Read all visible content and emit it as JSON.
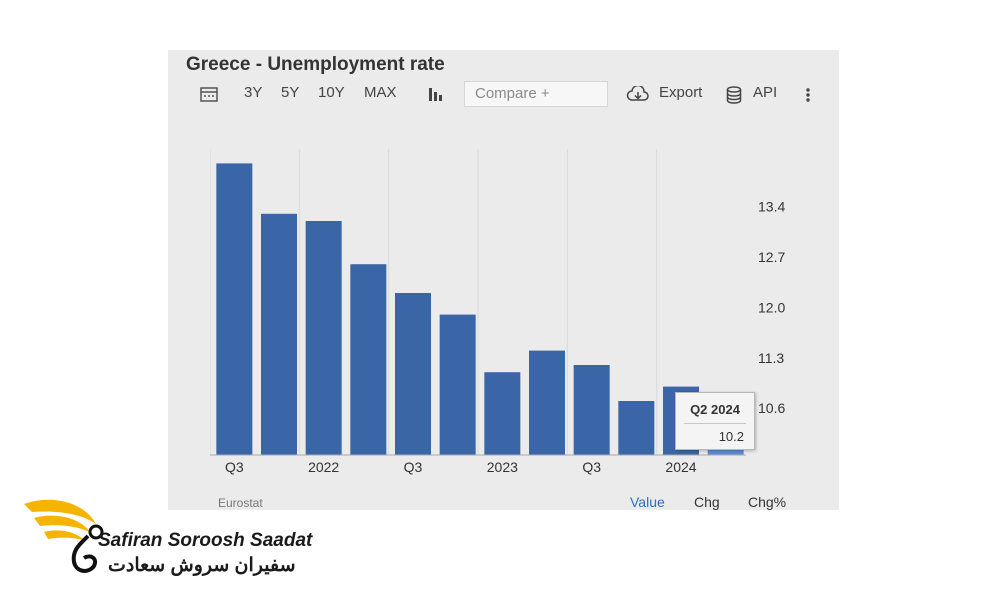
{
  "title": "Greece - Unemployment rate",
  "toolbar": {
    "range_buttons": [
      "3Y",
      "5Y",
      "10Y",
      "MAX"
    ],
    "compare_placeholder": "Compare +",
    "export_label": "Export",
    "api_label": "API",
    "icons": [
      "calendar-icon",
      "bar-chart-icon",
      "cloud-download-icon",
      "database-icon",
      "more-vertical-icon"
    ]
  },
  "source": "Eurostat",
  "footer_tabs": [
    "Value",
    "Chg",
    "Chg%"
  ],
  "tooltip": {
    "period": "Q2 2024",
    "value": "10.2"
  },
  "brand": {
    "name_en": "Safiran Soroosh Saadat",
    "name_fa": "سفیران سروش سعادت"
  },
  "colors": {
    "bar": "#3a66a8",
    "bar_highlight": "#5b8dd6",
    "accent": "#2a6fcc",
    "logo_gold": "#f5b400"
  },
  "chart_data": {
    "type": "bar",
    "categories": [
      "Q3 2021",
      "Q4 2021",
      "Q1 2022",
      "Q2 2022",
      "Q3 2022",
      "Q4 2022",
      "Q1 2023",
      "Q2 2023",
      "Q3 2023",
      "Q4 2023",
      "Q1 2024",
      "Q2 2024"
    ],
    "values": [
      14.0,
      13.3,
      13.2,
      12.6,
      12.2,
      11.9,
      11.1,
      11.4,
      11.2,
      10.7,
      10.9,
      10.2
    ],
    "highlight_index": 11,
    "x_tick_labels": [
      {
        "label": "Q3",
        "index": 0
      },
      {
        "label": "2022",
        "index": 2
      },
      {
        "label": "Q3",
        "index": 4
      },
      {
        "label": "2023",
        "index": 6
      },
      {
        "label": "Q3",
        "index": 8
      },
      {
        "label": "2024",
        "index": 10
      }
    ],
    "y_ticks": [
      10.6,
      11.3,
      12.0,
      12.7,
      13.4
    ],
    "ylim": [
      9.95,
      14.2
    ],
    "title": "Greece - Unemployment rate",
    "xlabel": "",
    "ylabel": "",
    "grid": true
  }
}
